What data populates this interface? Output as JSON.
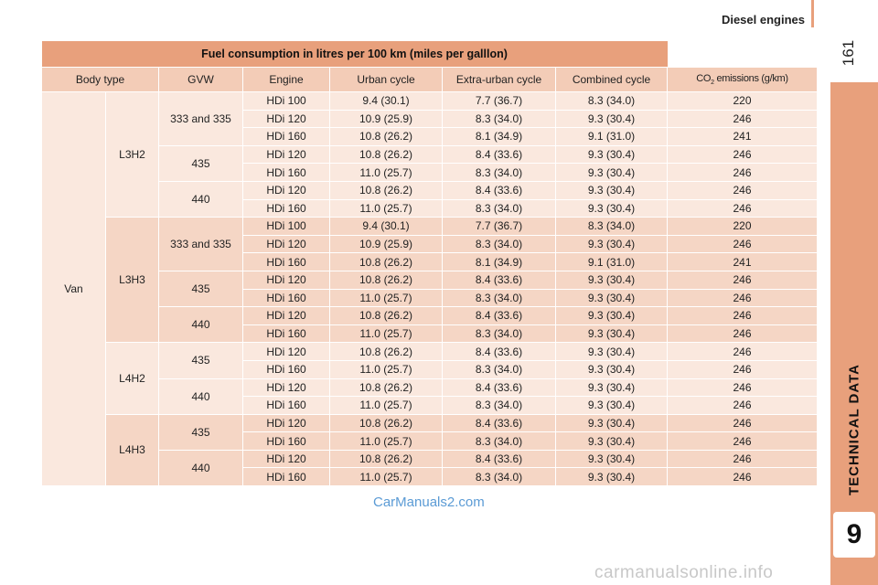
{
  "header": {
    "title": "Diesel engines",
    "page_number": "161"
  },
  "side_tab": {
    "label": "TECHNICAL DATA",
    "chapter": "9"
  },
  "table": {
    "title": "Fuel consumption in litres per 100 km (miles per galllon)",
    "columns": [
      "Body type",
      "GVW",
      "Engine",
      "Urban cycle",
      "Extra-urban cycle",
      "Combined cycle",
      "CO",
      "2",
      " emissions (g/km)"
    ],
    "body_type": "Van",
    "groups": [
      {
        "model": "L3H2",
        "gvw": [
          "333 and 335",
          "435",
          "440"
        ],
        "rows": [
          [
            "HDi 100",
            "9.4 (30.1)",
            "7.7 (36.7)",
            "8.3 (34.0)",
            "220"
          ],
          [
            "HDi 120",
            "10.9 (25.9)",
            "8.3 (34.0)",
            "9.3 (30.4)",
            "246"
          ],
          [
            "HDi 160",
            "10.8 (26.2)",
            "8.1 (34.9)",
            "9.1 (31.0)",
            "241"
          ],
          [
            "HDi 120",
            "10.8 (26.2)",
            "8.4 (33.6)",
            "9.3 (30.4)",
            "246"
          ],
          [
            "HDi 160",
            "11.0 (25.7)",
            "8.3 (34.0)",
            "9.3 (30.4)",
            "246"
          ],
          [
            "HDi 120",
            "10.8 (26.2)",
            "8.4 (33.6)",
            "9.3 (30.4)",
            "246"
          ],
          [
            "HDi 160",
            "11.0 (25.7)",
            "8.3 (34.0)",
            "9.3 (30.4)",
            "246"
          ]
        ]
      },
      {
        "model": "L3H3",
        "gvw": [
          "333 and 335",
          "435",
          "440"
        ],
        "rows": [
          [
            "HDi 100",
            "9.4 (30.1)",
            "7.7 (36.7)",
            "8.3 (34.0)",
            "220"
          ],
          [
            "HDi 120",
            "10.9 (25.9)",
            "8.3 (34.0)",
            "9.3 (30.4)",
            "246"
          ],
          [
            "HDi 160",
            "10.8 (26.2)",
            "8.1 (34.9)",
            "9.1 (31.0)",
            "241"
          ],
          [
            "HDi 120",
            "10.8 (26.2)",
            "8.4 (33.6)",
            "9.3 (30.4)",
            "246"
          ],
          [
            "HDi 160",
            "11.0 (25.7)",
            "8.3 (34.0)",
            "9.3 (30.4)",
            "246"
          ],
          [
            "HDi 120",
            "10.8 (26.2)",
            "8.4 (33.6)",
            "9.3 (30.4)",
            "246"
          ],
          [
            "HDi 160",
            "11.0 (25.7)",
            "8.3 (34.0)",
            "9.3 (30.4)",
            "246"
          ]
        ]
      },
      {
        "model": "L4H2",
        "gvw": [
          "435",
          "440"
        ],
        "rows": [
          [
            "HDi 120",
            "10.8 (26.2)",
            "8.4 (33.6)",
            "9.3 (30.4)",
            "246"
          ],
          [
            "HDi 160",
            "11.0 (25.7)",
            "8.3 (34.0)",
            "9.3 (30.4)",
            "246"
          ],
          [
            "HDi 120",
            "10.8 (26.2)",
            "8.4 (33.6)",
            "9.3 (30.4)",
            "246"
          ],
          [
            "HDi 160",
            "11.0 (25.7)",
            "8.3 (34.0)",
            "9.3 (30.4)",
            "246"
          ]
        ]
      },
      {
        "model": "L4H3",
        "gvw": [
          "435",
          "440"
        ],
        "rows": [
          [
            "HDi 120",
            "10.8 (26.2)",
            "8.4 (33.6)",
            "9.3 (30.4)",
            "246"
          ],
          [
            "HDi 160",
            "11.0 (25.7)",
            "8.3 (34.0)",
            "9.3 (30.4)",
            "246"
          ],
          [
            "HDi 120",
            "10.8 (26.2)",
            "8.4 (33.6)",
            "9.3 (30.4)",
            "246"
          ],
          [
            "HDi 160",
            "11.0 (25.7)",
            "8.3 (34.0)",
            "9.3 (30.4)",
            "246"
          ]
        ]
      }
    ]
  },
  "watermarks": {
    "left": "CarManuals2.com",
    "bottom": "carmanualsonline.info"
  },
  "colors": {
    "accent": "#e8a07c",
    "header_row": "#f3ccb7",
    "row_light": "#fae8de",
    "row_dark": "#f5d6c5"
  }
}
